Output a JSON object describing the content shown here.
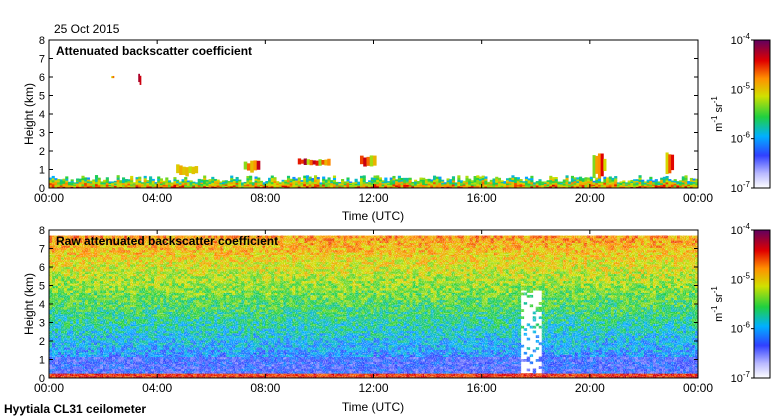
{
  "page": {
    "date": "25 Oct 2015",
    "footer": "Hyytiala CL31 ceilometer"
  },
  "colorbar": {
    "tick_labels": [
      "10",
      "10",
      "10",
      "10"
    ],
    "tick_exponents": [
      "-4",
      "-5",
      "-6",
      "-7"
    ],
    "tick_values": [
      0.0001,
      1e-05,
      1e-06,
      1e-07
    ],
    "unit_m": "m",
    "unit_m_exp": "-1",
    "unit_sr": "sr",
    "unit_sr_exp": "-1",
    "scale": "log",
    "range": [
      1e-07,
      0.0001
    ]
  },
  "chart_data": [
    {
      "type": "heatmap",
      "title": "Attenuated backscatter coefficient",
      "xlabel": "Time (UTC)",
      "ylabel": "Height (km)",
      "x_tick_labels": [
        "00:00",
        "04:00",
        "08:00",
        "12:00",
        "16:00",
        "20:00",
        "00:00"
      ],
      "x_ticks_hours": [
        0,
        4,
        8,
        12,
        16,
        20,
        24
      ],
      "xlim_hours": [
        0,
        24
      ],
      "y_tick_labels": [
        "0",
        "1",
        "2",
        "3",
        "4",
        "5",
        "6",
        "7",
        "8"
      ],
      "ylim": [
        0,
        8
      ],
      "color_scale": "log",
      "clim": [
        1e-07,
        0.0001
      ],
      "features": [
        {
          "kind": "boundary_layer",
          "t_start": 0,
          "t_end": 24,
          "top_km": 0.5
        },
        {
          "kind": "cloud",
          "t_start": 2.3,
          "t_end": 2.4,
          "base_km": 5.9,
          "top_km": 6.1
        },
        {
          "kind": "cloud",
          "t_start": 3.3,
          "t_end": 3.4,
          "base_km": 5.5,
          "top_km": 6.3
        },
        {
          "kind": "cloud",
          "t_start": 4.7,
          "t_end": 5.5,
          "base_km": 0.6,
          "top_km": 1.3
        },
        {
          "kind": "cloud",
          "t_start": 7.2,
          "t_end": 7.8,
          "base_km": 0.8,
          "top_km": 1.5
        },
        {
          "kind": "cloud",
          "t_start": 9.2,
          "t_end": 10.4,
          "base_km": 1.2,
          "top_km": 1.6
        },
        {
          "kind": "cloud",
          "t_start": 11.5,
          "t_end": 12.1,
          "base_km": 1.1,
          "top_km": 1.8
        },
        {
          "kind": "cloud",
          "t_start": 20.1,
          "t_end": 20.6,
          "base_km": 0.5,
          "top_km": 2.0
        },
        {
          "kind": "cloud",
          "t_start": 22.8,
          "t_end": 23.1,
          "base_km": 0.6,
          "top_km": 2.3
        }
      ]
    },
    {
      "type": "heatmap",
      "title": "Raw attenuated backscatter coefficient",
      "xlabel": "Time (UTC)",
      "ylabel": "Height (km)",
      "x_tick_labels": [
        "00:00",
        "04:00",
        "08:00",
        "12:00",
        "16:00",
        "20:00",
        "00:00"
      ],
      "x_ticks_hours": [
        0,
        4,
        8,
        12,
        16,
        20,
        24
      ],
      "xlim_hours": [
        0,
        24
      ],
      "y_tick_labels": [
        "0",
        "1",
        "2",
        "3",
        "4",
        "5",
        "6",
        "7",
        "8"
      ],
      "ylim": [
        0,
        8
      ],
      "data_top_km": 7.7,
      "color_scale": "log",
      "clim": [
        1e-07,
        0.0001
      ],
      "features": [
        {
          "kind": "noise_gradient",
          "low_km": 0,
          "high_km": 7.7
        },
        {
          "kind": "data_gap",
          "t_start": 17.5,
          "t_end": 18.2,
          "base_km": 0.3,
          "top_km": 4.8
        }
      ]
    }
  ]
}
